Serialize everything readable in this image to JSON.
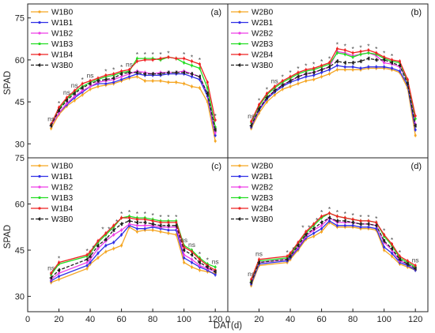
{
  "figure": {
    "ylabel": "SPAD",
    "xlabel": "DAT(d)",
    "x_ticks": [
      "0",
      "20",
      "40",
      "60",
      "80",
      "100",
      "120"
    ],
    "y_ticks_top": [
      "30",
      "45",
      "60",
      "75"
    ],
    "y_ticks_bottom": [
      "30",
      "45",
      "60",
      "75"
    ],
    "colors": {
      "B0": "#f5a623",
      "B1": "#2f2fe6",
      "B2": "#ee3ee6",
      "B3": "#22dd22",
      "B4": "#ee2222",
      "W3B0": "#222222"
    }
  },
  "chart_data": [
    {
      "type": "line",
      "panel": "(a)",
      "xlim": [
        0,
        128
      ],
      "ylim": [
        25,
        80
      ],
      "x": [
        15,
        20,
        25,
        30,
        35,
        40,
        45,
        50,
        55,
        60,
        65,
        70,
        75,
        80,
        85,
        90,
        95,
        100,
        105,
        110,
        115,
        120
      ],
      "series": [
        {
          "name": "W1B0",
          "key": "B0",
          "values": [
            35.5,
            40.5,
            43.5,
            45.5,
            47.5,
            49.5,
            50.5,
            51,
            51.5,
            52.5,
            53.5,
            54,
            52.5,
            52.5,
            52.5,
            52,
            52,
            51.5,
            50.5,
            50,
            45,
            31
          ]
        },
        {
          "name": "W1B1",
          "key": "B1",
          "values": [
            36.5,
            41,
            44,
            46.5,
            48.5,
            50.5,
            51.5,
            51.5,
            52,
            53,
            54,
            55,
            54.5,
            54.5,
            54.5,
            55,
            55,
            55,
            54,
            53,
            47,
            33
          ]
        },
        {
          "name": "W1B2",
          "key": "B2",
          "values": [
            36.5,
            41,
            44.5,
            47,
            49,
            50.5,
            52,
            52.5,
            53,
            54,
            55,
            56,
            55.5,
            55,
            55.5,
            55.5,
            55.5,
            56,
            55,
            54,
            48,
            34
          ]
        },
        {
          "name": "W1B3",
          "key": "B3",
          "values": [
            37,
            42.5,
            46,
            48.5,
            50.5,
            52,
            53,
            54,
            54.5,
            55.5,
            56,
            60.5,
            60.5,
            60.5,
            60,
            61,
            60.5,
            59,
            58,
            57,
            50,
            36
          ]
        },
        {
          "name": "W1B4",
          "key": "B4",
          "values": [
            37,
            43,
            46.5,
            49,
            51.5,
            52.5,
            53.5,
            54.5,
            55,
            56,
            56.5,
            59.5,
            60,
            60,
            60.5,
            61,
            60.5,
            60.5,
            59.5,
            58.5,
            52,
            38.5
          ]
        },
        {
          "name": "W3B0",
          "key": "W3B0",
          "dashed": true,
          "values": [
            36.5,
            42,
            45.5,
            48,
            50,
            51.5,
            52.5,
            53,
            53.5,
            55,
            55.5,
            55.5,
            55,
            55,
            55,
            55.5,
            55.5,
            55.5,
            55,
            54,
            48,
            35
          ]
        }
      ],
      "annotations": [
        {
          "x": 15,
          "text": "ns"
        },
        {
          "x": 20,
          "text": "*"
        },
        {
          "x": 25,
          "text": "ns"
        },
        {
          "x": 30,
          "text": "ns"
        },
        {
          "x": 35,
          "text": "*"
        },
        {
          "x": 40,
          "text": "ns"
        },
        {
          "x": 50,
          "text": "*"
        },
        {
          "x": 55,
          "text": "*"
        },
        {
          "x": 60,
          "text": "*"
        },
        {
          "x": 65,
          "text": "ns"
        },
        {
          "x": 70,
          "text": "*"
        },
        {
          "x": 75,
          "text": "*"
        },
        {
          "x": 80,
          "text": "*"
        },
        {
          "x": 85,
          "text": "*"
        },
        {
          "x": 90,
          "text": "*"
        },
        {
          "x": 100,
          "text": "*"
        },
        {
          "x": 105,
          "text": "*"
        },
        {
          "x": 110,
          "text": "*"
        },
        {
          "x": 120,
          "text": "*"
        }
      ]
    },
    {
      "type": "line",
      "panel": "(b)",
      "xlim": [
        0,
        128
      ],
      "ylim": [
        25,
        80
      ],
      "x": [
        15,
        20,
        25,
        30,
        35,
        40,
        45,
        50,
        55,
        60,
        65,
        70,
        75,
        80,
        85,
        90,
        95,
        100,
        105,
        110,
        115,
        120
      ],
      "series": [
        {
          "name": "W2B0",
          "key": "B0",
          "values": [
            35.5,
            41,
            45,
            47.5,
            49.5,
            50.5,
            51.5,
            52.5,
            53,
            54,
            55,
            56.5,
            56.5,
            56.5,
            56.5,
            57,
            57,
            57,
            56.5,
            55.5,
            50,
            33
          ]
        },
        {
          "name": "W2B1",
          "key": "B1",
          "values": [
            36,
            42,
            46,
            48.5,
            50.5,
            52,
            53,
            54,
            54.5,
            55.5,
            56.5,
            58,
            57.5,
            57.5,
            57,
            57.5,
            57.5,
            57.5,
            57,
            56,
            51,
            35
          ]
        },
        {
          "name": "W2B2",
          "key": "B2",
          "values": [
            36.5,
            42.5,
            46.5,
            49,
            51,
            52.5,
            54,
            55,
            55.5,
            56.5,
            57.5,
            63,
            62.5,
            61.5,
            62,
            62.5,
            61.5,
            59,
            58.5,
            57.5,
            52.5,
            37
          ]
        },
        {
          "name": "W2B3",
          "key": "B3",
          "values": [
            37.5,
            43.5,
            47.5,
            50,
            52,
            53.5,
            55,
            56,
            56.5,
            57.5,
            58.5,
            62.5,
            62,
            61,
            62,
            62.5,
            62,
            60.5,
            59.5,
            59,
            52.5,
            39
          ]
        },
        {
          "name": "W2B4",
          "key": "B4",
          "values": [
            38,
            44,
            48,
            50.5,
            52.5,
            54,
            55.5,
            56.5,
            57,
            58,
            59,
            64,
            63.5,
            62.5,
            63,
            63.5,
            62.5,
            61,
            60,
            59.5,
            53,
            40
          ]
        },
        {
          "name": "W3B0",
          "key": "W3B0",
          "dashed": true,
          "values": [
            36.5,
            42.5,
            46.5,
            49,
            51,
            52.5,
            54,
            55,
            55.5,
            56.5,
            57.5,
            59.5,
            59,
            59,
            59.5,
            60.5,
            60,
            60,
            59,
            58,
            51.5,
            36.5
          ]
        }
      ],
      "annotations": [
        {
          "x": 15,
          "text": "ns"
        },
        {
          "x": 20,
          "text": "*"
        },
        {
          "x": 25,
          "text": "*"
        },
        {
          "x": 30,
          "text": "ns"
        },
        {
          "x": 35,
          "text": "*"
        },
        {
          "x": 40,
          "text": "*"
        },
        {
          "x": 45,
          "text": "*"
        },
        {
          "x": 50,
          "text": "*"
        },
        {
          "x": 55,
          "text": "*"
        },
        {
          "x": 60,
          "text": "*"
        },
        {
          "x": 65,
          "text": "*"
        },
        {
          "x": 70,
          "text": "*"
        },
        {
          "x": 75,
          "text": "*"
        },
        {
          "x": 80,
          "text": "*"
        },
        {
          "x": 85,
          "text": "*"
        },
        {
          "x": 90,
          "text": "*"
        },
        {
          "x": 95,
          "text": "*"
        },
        {
          "x": 100,
          "text": "*"
        },
        {
          "x": 105,
          "text": "*"
        }
      ]
    },
    {
      "type": "line",
      "panel": "(c)",
      "xlim": [
        0,
        128
      ],
      "ylim": [
        25,
        75
      ],
      "x": [
        15,
        20,
        38,
        40,
        45,
        50,
        55,
        60,
        65,
        70,
        75,
        80,
        85,
        90,
        95,
        100,
        105,
        110,
        115,
        120
      ],
      "series": [
        {
          "name": "W1B0",
          "key": "B0",
          "values": [
            34.5,
            35.5,
            39,
            40.5,
            42.5,
            44.5,
            45.5,
            46.5,
            52.5,
            51,
            51.5,
            51.5,
            51,
            50.5,
            50,
            41,
            39.5,
            38.5,
            38,
            37.5
          ]
        },
        {
          "name": "W1B1",
          "key": "B1",
          "values": [
            35,
            36.5,
            40,
            41,
            44,
            46.5,
            47.5,
            50,
            53,
            52,
            52,
            52.5,
            52,
            51.5,
            51.5,
            42.5,
            41,
            39.5,
            38.5,
            37
          ]
        },
        {
          "name": "W1B2",
          "key": "B2",
          "values": [
            35.5,
            37.5,
            41,
            42,
            45.5,
            48,
            50,
            51.5,
            53.5,
            53,
            53,
            53,
            52.5,
            52.5,
            52.5,
            43.5,
            42,
            40,
            39,
            38
          ]
        },
        {
          "name": "W1B3",
          "key": "B3",
          "values": [
            37,
            40.5,
            43,
            44,
            47.5,
            50,
            52.5,
            55.5,
            56,
            55.5,
            55.5,
            55,
            54.5,
            54.5,
            54.5,
            46.5,
            45,
            42.5,
            40.5,
            39.5
          ]
        },
        {
          "name": "W1B4",
          "key": "B4",
          "values": [
            37.5,
            41,
            43.5,
            44.5,
            48,
            50.5,
            53,
            55.5,
            55.5,
            55,
            55,
            54.5,
            54,
            54,
            54,
            46,
            44.5,
            42,
            40,
            38.5
          ]
        },
        {
          "name": "W3B0",
          "key": "W3B0",
          "dashed": true,
          "values": [
            36,
            38.5,
            42,
            43,
            46.5,
            48.5,
            51.5,
            53.5,
            54.5,
            54,
            54,
            53.5,
            53,
            53,
            53,
            45,
            43.5,
            41,
            39.5,
            38
          ]
        }
      ],
      "annotations": [
        {
          "x": 15,
          "text": "ns"
        },
        {
          "x": 20,
          "text": "*"
        },
        {
          "x": 38,
          "text": "*"
        },
        {
          "x": 42,
          "text": "*"
        },
        {
          "x": 48,
          "text": "*"
        },
        {
          "x": 52,
          "text": "*"
        },
        {
          "x": 57,
          "text": "*"
        },
        {
          "x": 60,
          "text": "*"
        },
        {
          "x": 65,
          "text": "*"
        },
        {
          "x": 70,
          "text": "*"
        },
        {
          "x": 75,
          "text": "*"
        },
        {
          "x": 80,
          "text": "*"
        },
        {
          "x": 85,
          "text": "*"
        },
        {
          "x": 90,
          "text": "*"
        },
        {
          "x": 95,
          "text": "*"
        },
        {
          "x": 100,
          "text": "ns"
        },
        {
          "x": 105,
          "text": "ns"
        },
        {
          "x": 110,
          "text": "*"
        },
        {
          "x": 115,
          "text": "*"
        },
        {
          "x": 120,
          "text": "ns"
        }
      ]
    },
    {
      "type": "line",
      "panel": "(d)",
      "xlim": [
        0,
        128
      ],
      "ylim": [
        25,
        75
      ],
      "x": [
        15,
        20,
        38,
        40,
        45,
        50,
        55,
        60,
        65,
        70,
        75,
        80,
        85,
        90,
        95,
        100,
        105,
        110,
        115,
        120
      ],
      "series": [
        {
          "name": "W2B0",
          "key": "B0",
          "values": [
            33.5,
            40,
            41,
            42,
            45,
            48.5,
            49.5,
            51,
            54,
            52.5,
            52.5,
            52.5,
            52,
            52,
            51.5,
            45,
            43,
            40.5,
            39.5,
            38.5
          ]
        },
        {
          "name": "W2B1",
          "key": "B1",
          "values": [
            34,
            40.5,
            41.5,
            42.5,
            45.5,
            49,
            50.5,
            52,
            54.5,
            53,
            53,
            53,
            52.5,
            52.5,
            52,
            46,
            44,
            41,
            40,
            38.5
          ]
        },
        {
          "name": "W2B2",
          "key": "B2",
          "values": [
            34.5,
            41,
            42,
            43,
            46,
            49.5,
            51.5,
            53,
            55.5,
            54,
            54,
            54,
            53.5,
            53.5,
            53,
            47.5,
            45,
            41.5,
            40.5,
            39
          ]
        },
        {
          "name": "W2B3",
          "key": "B3",
          "values": [
            35,
            41.5,
            42.5,
            43.5,
            47,
            50.5,
            53,
            55.5,
            57,
            56,
            55.5,
            55,
            54.5,
            54.5,
            54,
            49.5,
            46.5,
            42.5,
            41,
            39.5
          ]
        },
        {
          "name": "W2B4",
          "key": "B4",
          "values": [
            35.5,
            42,
            43,
            44,
            47.5,
            51,
            53.5,
            56,
            57,
            56,
            55.5,
            55,
            54.5,
            54.5,
            54,
            50,
            47,
            43,
            41.5,
            40
          ]
        },
        {
          "name": "W3B0",
          "key": "W3B0",
          "dashed": true,
          "values": [
            34.5,
            41,
            42,
            43,
            46.5,
            50,
            52,
            54,
            55.5,
            54.5,
            54.5,
            54,
            53.5,
            53.5,
            53,
            48,
            45.5,
            42,
            40.5,
            39
          ]
        }
      ],
      "annotations": [
        {
          "x": 15,
          "text": "ns"
        },
        {
          "x": 20,
          "text": "ns"
        },
        {
          "x": 38,
          "text": "*"
        },
        {
          "x": 42,
          "text": "*"
        },
        {
          "x": 48,
          "text": "*"
        },
        {
          "x": 52,
          "text": "*"
        },
        {
          "x": 57,
          "text": "*"
        },
        {
          "x": 60,
          "text": "*"
        },
        {
          "x": 65,
          "text": "*"
        },
        {
          "x": 70,
          "text": "*"
        },
        {
          "x": 75,
          "text": "*"
        },
        {
          "x": 80,
          "text": "*"
        },
        {
          "x": 85,
          "text": "*"
        },
        {
          "x": 90,
          "text": "*"
        },
        {
          "x": 95,
          "text": "*"
        },
        {
          "x": 100,
          "text": "*"
        },
        {
          "x": 105,
          "text": "*"
        },
        {
          "x": 110,
          "text": "*"
        },
        {
          "x": 120,
          "text": "ns"
        }
      ]
    }
  ]
}
